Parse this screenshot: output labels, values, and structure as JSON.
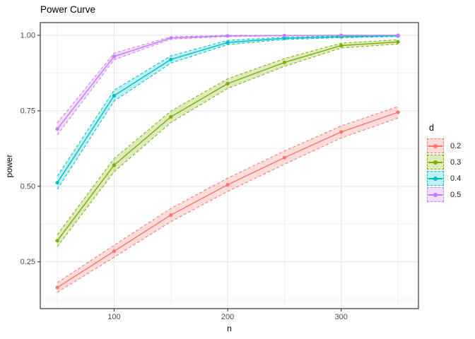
{
  "chart_data": {
    "type": "line",
    "title": "Power Curve",
    "xlabel": "n",
    "ylabel": "power",
    "legend_title": "d",
    "legend_position": "right",
    "grid": true,
    "x": [
      50,
      100,
      150,
      200,
      250,
      300,
      350
    ],
    "xlim": [
      35,
      368
    ],
    "ylim": [
      0.095,
      1.042
    ],
    "x_breaks": [
      100,
      200,
      300
    ],
    "x_tick_labels": [
      "100",
      "200",
      "300"
    ],
    "x_minor_breaks": [
      50,
      150,
      250,
      350
    ],
    "y_breaks": [
      0.25,
      0.5,
      0.75,
      1.0
    ],
    "y_tick_labels": [
      "0.25",
      "0.50",
      "0.75",
      "1.00"
    ],
    "y_minor_breaks": [
      0.125,
      0.375,
      0.625,
      0.875
    ],
    "series": [
      {
        "name": "0.2",
        "color": "#F8766D",
        "fill": "rgba(248,118,109,0.25)",
        "values": [
          0.165,
          0.285,
          0.405,
          0.505,
          0.595,
          0.68,
          0.745
        ],
        "lower": [
          0.149,
          0.265,
          0.383,
          0.483,
          0.573,
          0.66,
          0.726
        ],
        "upper": [
          0.181,
          0.305,
          0.427,
          0.527,
          0.617,
          0.7,
          0.764
        ]
      },
      {
        "name": "0.3",
        "color": "#7CAE00",
        "fill": "rgba(124,174,0,0.25)",
        "values": [
          0.32,
          0.57,
          0.73,
          0.84,
          0.91,
          0.966,
          0.978
        ],
        "lower": [
          0.3,
          0.548,
          0.711,
          0.824,
          0.897,
          0.958,
          0.971
        ],
        "upper": [
          0.34,
          0.592,
          0.749,
          0.856,
          0.923,
          0.974,
          0.985
        ]
      },
      {
        "name": "0.4",
        "color": "#00BFC4",
        "fill": "rgba(0,191,196,0.25)",
        "values": [
          0.512,
          0.8,
          0.92,
          0.976,
          0.99,
          0.995,
          0.998
        ],
        "lower": [
          0.49,
          0.782,
          0.908,
          0.969,
          0.986,
          0.992,
          0.996
        ],
        "upper": [
          0.534,
          0.818,
          0.932,
          0.983,
          0.994,
          0.998,
          1.0
        ]
      },
      {
        "name": "0.5",
        "color": "#C77CFF",
        "fill": "rgba(199,124,255,0.25)",
        "values": [
          0.69,
          0.93,
          0.991,
          0.998,
          0.999,
          1.0,
          1.0
        ],
        "lower": [
          0.67,
          0.919,
          0.987,
          0.996,
          0.998,
          0.999,
          1.0
        ],
        "upper": [
          0.71,
          0.941,
          0.995,
          1.0,
          1.0,
          1.0,
          1.0
        ]
      }
    ],
    "style": {
      "panel_border": "#333333",
      "grid_major": "#e5e5e5",
      "grid_minor": "#f0f0f0",
      "tick_color": "#333333",
      "axis_text_color": "#4d4d4d"
    }
  }
}
